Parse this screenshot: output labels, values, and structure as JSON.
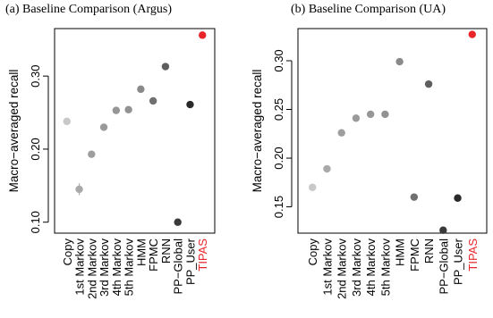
{
  "chart_data": [
    {
      "type": "scatter",
      "title": "(a)  Baseline Comparison (Argus)",
      "xlabel": "",
      "ylabel": "Macro−averaged recall",
      "yticks": [
        0.1,
        0.2,
        0.3
      ],
      "ytick_labels": [
        "0.10",
        "0.20",
        "0.30"
      ],
      "ylim": [
        0.085,
        0.365
      ],
      "grid": false,
      "categories": [
        "Copy",
        "1st Markov",
        "2nd Markov",
        "3rd Markov",
        "4th Markov",
        "5th Markov",
        "HMM",
        "FPMC",
        "RNN",
        "PP−Global",
        "PP_User",
        "TIPAS"
      ],
      "values": [
        0.238,
        0.145,
        0.193,
        0.23,
        0.253,
        0.254,
        0.282,
        0.266,
        0.313,
        0.1,
        0.261,
        0.356
      ],
      "error": [
        0,
        0.008,
        0,
        0,
        0,
        0,
        0.004,
        0,
        0.004,
        0,
        0,
        0
      ],
      "colors": [
        "#c8c8c8",
        "#a9a9a9",
        "#9e9e9e",
        "#9a9a9a",
        "#969696",
        "#929292",
        "#8a8a8a",
        "#707070",
        "#5e5e5e",
        "#3a3a3a",
        "#2a2a2a",
        "#e8262a"
      ],
      "label_colors": [
        "#000000",
        "#000000",
        "#000000",
        "#000000",
        "#000000",
        "#000000",
        "#000000",
        "#000000",
        "#000000",
        "#000000",
        "#000000",
        "#e8262a"
      ]
    },
    {
      "type": "scatter",
      "title": "(b)  Baseline Comparison (UA)",
      "xlabel": "",
      "ylabel": "Macro−averaged recall",
      "yticks": [
        0.15,
        0.2,
        0.25,
        0.3
      ],
      "ytick_labels": [
        "0.15",
        "0.20",
        "0.25",
        "0.30"
      ],
      "ylim": [
        0.123,
        0.333
      ],
      "grid": false,
      "categories": [
        "Copy",
        "1st Markov",
        "2nd Markov",
        "3rd Markov",
        "4th Markov",
        "5th Markov",
        "HMM",
        "FPMC",
        "RNN",
        "PP−Global",
        "PP_User",
        "TIPAS"
      ],
      "values": [
        0.17,
        0.189,
        0.226,
        0.241,
        0.245,
        0.245,
        0.299,
        0.16,
        0.276,
        0.126,
        0.159,
        0.327
      ],
      "error": [
        0,
        0,
        0,
        0,
        0,
        0,
        0,
        0,
        0,
        0,
        0,
        0
      ],
      "colors": [
        "#c8c8c8",
        "#a9a9a9",
        "#9e9e9e",
        "#9a9a9a",
        "#969696",
        "#929292",
        "#8a8a8a",
        "#707070",
        "#5e5e5e",
        "#3a3a3a",
        "#2a2a2a",
        "#e8262a"
      ],
      "label_colors": [
        "#000000",
        "#000000",
        "#000000",
        "#000000",
        "#000000",
        "#000000",
        "#000000",
        "#000000",
        "#000000",
        "#000000",
        "#000000",
        "#e8262a"
      ]
    }
  ]
}
